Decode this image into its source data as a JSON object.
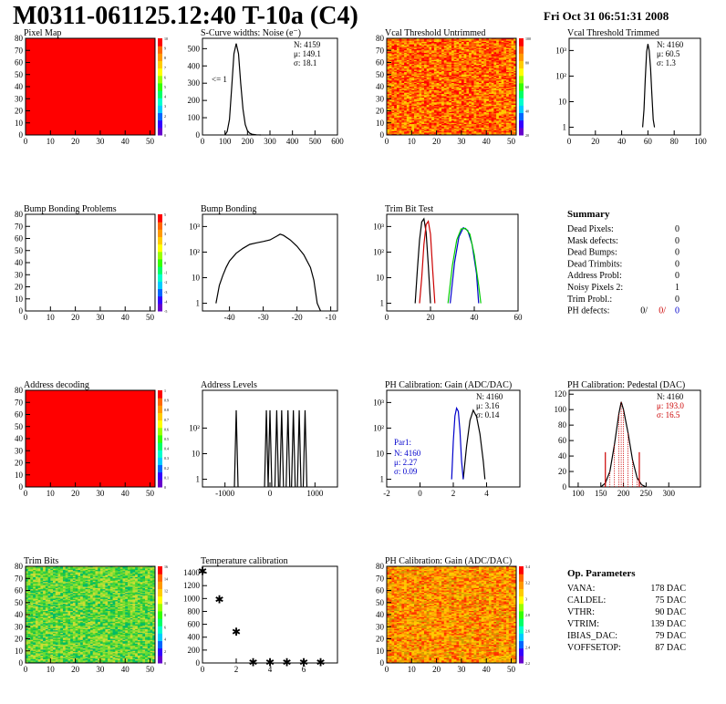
{
  "header": {
    "title": "M0311-061125.12:40 T-10a (C4)",
    "date": "Fri Oct 31 06:51:31 2008"
  },
  "colors": {
    "red_fill": "#ff0000",
    "black_line": "#000000",
    "red_line": "#cc0000",
    "blue_line": "#0000cc",
    "green_line": "#00cc00"
  },
  "chart_data": [
    {
      "id": "pixel-map",
      "type": "heatmap",
      "title": "Pixel Map",
      "xlim": [
        0,
        52
      ],
      "ylim": [
        0,
        80
      ],
      "xticks": [
        0,
        10,
        20,
        30,
        40,
        50
      ],
      "yticks": [
        0,
        10,
        20,
        30,
        40,
        50,
        60,
        70,
        80
      ],
      "fill": "uniform",
      "fill_color": "#ff0000",
      "zticks": [
        "0",
        "1",
        "2",
        "3",
        "4",
        "5",
        "6",
        "7",
        "8",
        "9",
        "10"
      ]
    },
    {
      "id": "s-curve",
      "type": "line",
      "title": "S-Curve widths: Noise (e⁻)",
      "xlim": [
        0,
        600
      ],
      "ylim": [
        0,
        560
      ],
      "xticks": [
        0,
        100,
        200,
        300,
        400,
        500,
        600
      ],
      "yticks": [
        0,
        100,
        200,
        300,
        400,
        500
      ],
      "stats": [
        "N: 4159",
        "μ: 149.1",
        "σ: 18.1"
      ],
      "annotation": "<= 1",
      "series": [
        {
          "color": "#000000",
          "x": [
            100,
            110,
            120,
            130,
            140,
            150,
            160,
            170,
            180,
            190,
            200,
            210,
            220,
            240,
            260
          ],
          "y": [
            0,
            20,
            90,
            280,
            470,
            530,
            470,
            300,
            150,
            60,
            25,
            10,
            4,
            1,
            0
          ]
        }
      ]
    },
    {
      "id": "vcal-untrimmed",
      "type": "heatmap",
      "title": "Vcal Threshold Untrimmed",
      "xlim": [
        0,
        52
      ],
      "ylim": [
        0,
        80
      ],
      "xticks": [
        0,
        10,
        20,
        30,
        40,
        50
      ],
      "yticks": [
        0,
        10,
        20,
        30,
        40,
        50,
        60,
        70,
        80
      ],
      "fill": "noise",
      "palette": [
        "#ffcc00",
        "#ff9900",
        "#ff6600",
        "#ff3300",
        "#ff0000"
      ],
      "zticks": [
        "20",
        "40",
        "60",
        "80",
        "100"
      ]
    },
    {
      "id": "vcal-trimmed",
      "type": "line",
      "title": "Vcal Threshold Trimmed",
      "log": true,
      "xlim": [
        0,
        100
      ],
      "ylim": [
        0.5,
        3000
      ],
      "xticks": [
        0,
        20,
        40,
        60,
        80,
        100
      ],
      "ylabels": [
        "1",
        "10",
        "10²",
        "10³"
      ],
      "stats": [
        "N: 4160",
        "μ: 60.5",
        "σ: 1.3"
      ],
      "series": [
        {
          "color": "#000000",
          "x": [
            56,
            57,
            58,
            59,
            60,
            61,
            62,
            63,
            64,
            65
          ],
          "y": [
            1,
            5,
            80,
            900,
            1800,
            1000,
            200,
            20,
            2,
            1
          ]
        }
      ]
    },
    {
      "id": "bump-problems",
      "type": "heatmap",
      "title": "Bump Bonding Problems",
      "xlim": [
        0,
        52
      ],
      "ylim": [
        0,
        80
      ],
      "xticks": [
        0,
        10,
        20,
        30,
        40,
        50
      ],
      "yticks": [
        0,
        10,
        20,
        30,
        40,
        50,
        60,
        70,
        80
      ],
      "fill": "empty",
      "zticks": [
        "-5",
        "-4",
        "-3",
        "-2",
        "-1",
        "0",
        "1",
        "2",
        "3",
        "4",
        "5"
      ]
    },
    {
      "id": "bump-bonding",
      "type": "line",
      "title": "Bump Bonding",
      "log": true,
      "xlim": [
        -48,
        -8
      ],
      "ylim": [
        0.5,
        3000
      ],
      "xticks": [
        -40,
        -30,
        -20,
        -10
      ],
      "ylabels": [
        "1",
        "10",
        "10²",
        "10³"
      ],
      "series": [
        {
          "color": "#000000",
          "x": [
            -44,
            -43,
            -42,
            -41,
            -40,
            -38,
            -36,
            -34,
            -32,
            -30,
            -28,
            -26,
            -25,
            -24,
            -22,
            -20,
            -18,
            -16,
            -15,
            -14,
            -13
          ],
          "y": [
            1,
            5,
            12,
            25,
            45,
            90,
            140,
            200,
            230,
            260,
            300,
            420,
            500,
            450,
            300,
            170,
            80,
            25,
            8,
            1,
            0.5
          ]
        }
      ]
    },
    {
      "id": "trim-bit-test",
      "type": "line",
      "title": "Trim Bit Test",
      "log": true,
      "xlim": [
        0,
        60
      ],
      "ylim": [
        0.5,
        3000
      ],
      "xticks": [
        0,
        20,
        40,
        60
      ],
      "ylabels": [
        "1",
        "10",
        "10²",
        "10³"
      ],
      "series": [
        {
          "color": "#000000",
          "x": [
            13,
            14,
            15,
            16,
            17,
            18,
            19,
            20
          ],
          "y": [
            1,
            20,
            300,
            1500,
            2000,
            600,
            30,
            1
          ]
        },
        {
          "color": "#cc0000",
          "x": [
            15,
            16,
            17,
            18,
            19,
            20,
            21,
            22
          ],
          "y": [
            1,
            10,
            200,
            1200,
            1600,
            500,
            20,
            1
          ]
        },
        {
          "color": "#0000cc",
          "x": [
            29,
            31,
            33,
            35,
            37,
            39,
            41,
            42
          ],
          "y": [
            1,
            40,
            400,
            900,
            700,
            200,
            15,
            1
          ]
        },
        {
          "color": "#00cc00",
          "x": [
            28,
            30,
            32,
            34,
            36,
            38,
            40,
            42,
            43
          ],
          "y": [
            1,
            30,
            300,
            800,
            850,
            500,
            80,
            5,
            1
          ]
        }
      ]
    },
    {
      "id": "summary",
      "type": "table",
      "title": "Summary",
      "rows": [
        {
          "label": "Dead Pixels:",
          "value": "0"
        },
        {
          "label": "Mask defects:",
          "value": "0"
        },
        {
          "label": "Dead Bumps:",
          "value": "0"
        },
        {
          "label": "Dead Trimbits:",
          "value": "0"
        },
        {
          "label": "Address Probl:",
          "value": "0"
        },
        {
          "label": "Noisy Pixels 2:",
          "value": "1"
        },
        {
          "label": "Trim Probl.:",
          "value": "0"
        }
      ],
      "ph_defects": {
        "label": "PH defects:",
        "black": "0/",
        "red": "0/",
        "blue": "0"
      }
    },
    {
      "id": "address-decoding",
      "type": "heatmap",
      "title": "Address decoding",
      "xlim": [
        0,
        52
      ],
      "ylim": [
        0,
        80
      ],
      "xticks": [
        0,
        10,
        20,
        30,
        40,
        50
      ],
      "yticks": [
        0,
        10,
        20,
        30,
        40,
        50,
        60,
        70,
        80
      ],
      "fill": "uniform",
      "fill_color": "#ff0000",
      "zticks": [
        "0",
        "0.1",
        "0.2",
        "0.3",
        "0.4",
        "0.5",
        "0.6",
        "0.7",
        "0.8",
        "0.9",
        "1"
      ]
    },
    {
      "id": "address-levels",
      "type": "line",
      "title": "Address Levels",
      "log": true,
      "xlim": [
        -1500,
        1500
      ],
      "ylim": [
        0.5,
        3000
      ],
      "xticks": [
        -1000,
        0,
        1000
      ],
      "ylabels": [
        "1",
        "10",
        "10²"
      ],
      "spikes": [
        -750,
        -80,
        0,
        150,
        260,
        400,
        520,
        650,
        780
      ],
      "spike_peak": 500
    },
    {
      "id": "ph-gain",
      "type": "line",
      "title": "PH Calibration: Gain (ADC/DAC)",
      "log": true,
      "xlim": [
        -2,
        6
      ],
      "ylim": [
        0.5,
        3000
      ],
      "xticks": [
        -2,
        0,
        2,
        4
      ],
      "ylabels": [
        "1",
        "10",
        "10²",
        "10³"
      ],
      "stats": [
        "N: 4160",
        "μ: 3.16",
        "σ: 0.14"
      ],
      "stats2": {
        "title": "Par1:",
        "lines": [
          "N: 4160",
          "μ: 2.27",
          "σ: 0.09"
        ]
      },
      "series": [
        {
          "color": "#000000",
          "x": [
            2.6,
            2.8,
            3.0,
            3.2,
            3.4,
            3.6,
            3.8,
            3.9
          ],
          "y": [
            1,
            20,
            200,
            500,
            280,
            60,
            5,
            1
          ]
        },
        {
          "color": "#0000cc",
          "x": [
            1.9,
            2.0,
            2.1,
            2.2,
            2.3,
            2.4,
            2.5,
            2.6
          ],
          "y": [
            1,
            30,
            300,
            600,
            450,
            80,
            5,
            1
          ]
        }
      ]
    },
    {
      "id": "ph-pedestal",
      "type": "line",
      "title": "PH Calibration: Pedestal (DAC)",
      "xlim": [
        80,
        370
      ],
      "ylim": [
        0,
        125
      ],
      "xticks": [
        100,
        150,
        200,
        250,
        300
      ],
      "yticks": [
        0,
        20,
        40,
        60,
        80,
        100,
        120
      ],
      "stats": [
        "N: 4160",
        "μ: 193.0",
        "σ: 16.5"
      ],
      "series": [
        {
          "color": "#000000",
          "x": [
            150,
            160,
            170,
            180,
            190,
            195,
            200,
            210,
            220,
            230,
            240,
            250
          ],
          "y": [
            0,
            5,
            20,
            55,
            95,
            110,
            100,
            70,
            35,
            12,
            3,
            0
          ]
        }
      ],
      "markers": [
        160,
        235
      ]
    },
    {
      "id": "trim-bits",
      "type": "heatmap",
      "title": "Trim Bits",
      "xlim": [
        0,
        52
      ],
      "ylim": [
        0,
        80
      ],
      "xticks": [
        0,
        10,
        20,
        30,
        40,
        50
      ],
      "yticks": [
        0,
        10,
        20,
        30,
        40,
        50,
        60,
        70,
        80
      ],
      "fill": "noise",
      "palette": [
        "#33cc33",
        "#66dd33",
        "#99dd33",
        "#ccdd33",
        "#00bb66"
      ],
      "zticks": [
        "0",
        "2",
        "4",
        "6",
        "8",
        "10",
        "12",
        "14",
        "16"
      ]
    },
    {
      "id": "temp-cal",
      "type": "scatter",
      "title": "Temperature calibration",
      "xlim": [
        0,
        8
      ],
      "ylim": [
        0,
        1500
      ],
      "xticks": [
        0,
        2,
        4,
        6
      ],
      "yticks": [
        0,
        200,
        400,
        600,
        800,
        1000,
        1200,
        1400
      ],
      "x": [
        0,
        1,
        2,
        3,
        4,
        5,
        6,
        7
      ],
      "y": [
        1420,
        980,
        480,
        10,
        10,
        10,
        10,
        10
      ]
    },
    {
      "id": "ph-gain-map",
      "type": "heatmap",
      "title": "PH Calibration: Gain (ADC/DAC)",
      "xlim": [
        0,
        52
      ],
      "ylim": [
        0,
        80
      ],
      "xticks": [
        0,
        10,
        20,
        30,
        40,
        50
      ],
      "yticks": [
        0,
        10,
        20,
        30,
        40,
        50,
        60,
        70,
        80
      ],
      "fill": "noise",
      "palette": [
        "#ff6600",
        "#ff9900",
        "#ffbb00",
        "#cc9900",
        "#ff3300",
        "#ffcc00"
      ],
      "zticks": [
        "2.2",
        "2.4",
        "2.6",
        "2.8",
        "3",
        "3.2",
        "3.4"
      ]
    },
    {
      "id": "op-params",
      "type": "table",
      "title": "Op. Parameters",
      "rows": [
        {
          "label": "VANA:",
          "value": "178 DAC"
        },
        {
          "label": "CALDEL:",
          "value": "75 DAC"
        },
        {
          "label": "VTHR:",
          "value": "90 DAC"
        },
        {
          "label": "VTRIM:",
          "value": "139 DAC"
        },
        {
          "label": "IBIAS_DAC:",
          "value": "79 DAC"
        },
        {
          "label": "VOFFSETOP:",
          "value": "87 DAC"
        }
      ]
    }
  ]
}
